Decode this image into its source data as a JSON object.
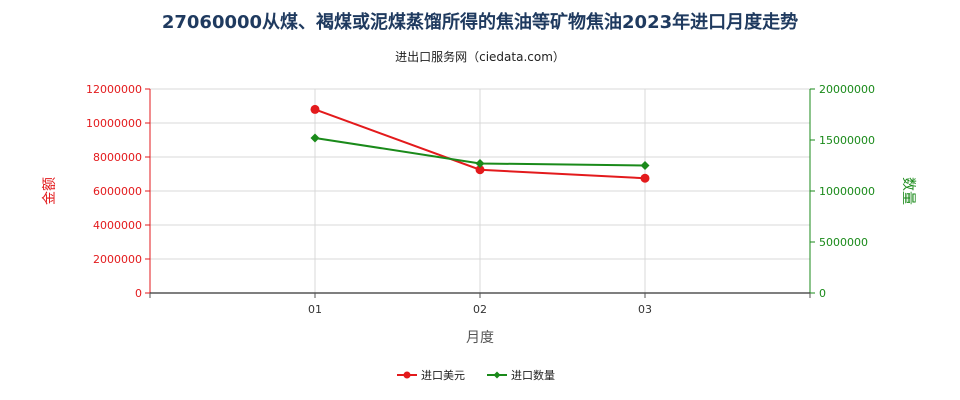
{
  "chart_data": {
    "type": "line",
    "title": "27060000从煤、褐煤或泥煤蒸馏所得的焦油等矿物焦油2023年进口月度走势",
    "subtitle": "进出口服务网（ciedata.com）",
    "xlabel": "月度",
    "ylabel_left": "金额",
    "ylabel_right": "数量",
    "categories": [
      "01",
      "02",
      "03"
    ],
    "ylim_left": [
      0,
      12000000
    ],
    "yticks_left": [
      "0",
      "2000000",
      "4000000",
      "6000000",
      "8000000",
      "10000000",
      "12000000"
    ],
    "ylim_right": [
      0,
      20000000
    ],
    "yticks_right": [
      "0",
      "5000000",
      "10000000",
      "15000000",
      "20000000"
    ],
    "grid": true,
    "legend_position": "bottom-center",
    "series": [
      {
        "name": "进口美元",
        "axis": "left",
        "color": "#e31a1c",
        "marker": "circle",
        "values": [
          10800000,
          7250000,
          6750000
        ]
      },
      {
        "name": "进口数量",
        "axis": "right",
        "color": "#1a8a1a",
        "marker": "diamond",
        "values": [
          15200000,
          12700000,
          12500000
        ]
      }
    ]
  }
}
